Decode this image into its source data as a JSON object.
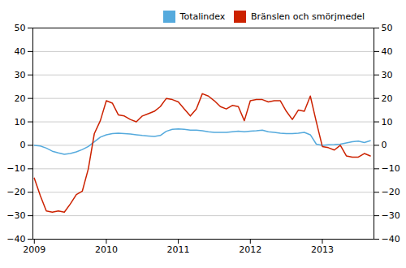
{
  "chart_data": {
    "type": "line",
    "x": [
      2009,
      2009.0833333333,
      2009.1666666667,
      2009.25,
      2009.3333333333,
      2009.4166666667,
      2009.5,
      2009.5833333333,
      2009.6666666667,
      2009.75,
      2009.8333333333,
      2009.9166666667,
      2010,
      2010.0833333333,
      2010.1666666667,
      2010.25,
      2010.3333333333,
      2010.4166666667,
      2010.5,
      2010.5833333333,
      2010.6666666667,
      2010.75,
      2010.8333333333,
      2010.9166666667,
      2011,
      2011.0833333333,
      2011.1666666667,
      2011.25,
      2011.3333333333,
      2011.4166666667,
      2011.5,
      2011.5833333333,
      2011.6666666667,
      2011.75,
      2011.8333333333,
      2011.9166666667,
      2012,
      2012.0833333333,
      2012.1666666667,
      2012.25,
      2012.3333333333,
      2012.4166666667,
      2012.5,
      2012.5833333333,
      2012.6666666667,
      2012.75,
      2012.8333333333,
      2012.9166666667,
      2013,
      2013.0833333333,
      2013.1666666667,
      2013.25,
      2013.3333333333,
      2013.4166666667,
      2013.5,
      2013.5833333333,
      2013.6666666667
    ],
    "series": [
      {
        "name": "Totalindex",
        "color": "#55aadd",
        "values": [
          0.0,
          -0.3,
          -1.2,
          -2.5,
          -3.2,
          -3.8,
          -3.5,
          -2.8,
          -1.8,
          -0.5,
          1.5,
          3.5,
          4.5,
          5.0,
          5.2,
          5.0,
          4.8,
          4.5,
          4.2,
          4.0,
          3.8,
          4.2,
          6.0,
          6.8,
          7.0,
          6.8,
          6.5,
          6.5,
          6.2,
          5.8,
          5.5,
          5.5,
          5.5,
          5.8,
          6.0,
          5.8,
          6.0,
          6.2,
          6.5,
          5.8,
          5.5,
          5.2,
          5.0,
          5.0,
          5.2,
          5.5,
          4.5,
          0.5,
          0.0,
          0.2,
          0.3,
          0.5,
          1.0,
          1.5,
          1.8,
          1.2,
          2.0
        ]
      },
      {
        "name": "Bränslen och smörjmedel",
        "color": "#cc2200",
        "values": [
          -14.0,
          -21.5,
          -28.0,
          -28.5,
          -28.0,
          -28.5,
          -25.0,
          -21.0,
          -19.5,
          -10.0,
          5.0,
          10.5,
          19.0,
          18.0,
          13.0,
          12.5,
          11.0,
          10.0,
          12.5,
          13.5,
          14.5,
          16.5,
          20.0,
          19.5,
          18.5,
          15.5,
          12.5,
          15.5,
          22.0,
          21.0,
          19.0,
          16.5,
          15.5,
          17.0,
          16.5,
          10.5,
          19.0,
          19.5,
          19.5,
          18.5,
          19.0,
          19.0,
          14.5,
          11.0,
          15.0,
          14.5,
          21.0,
          10.0,
          -0.5,
          -1.0,
          -2.0,
          0.0,
          -4.5,
          -5.0,
          -5.0,
          -3.5,
          -4.5
        ]
      }
    ],
    "xlim": [
      2008.98,
      2013.7166666667
    ],
    "xticks": [
      2009,
      2010,
      2011,
      2012,
      2013
    ],
    "ylim": [
      -40,
      50
    ],
    "yticks": [
      -40,
      -30,
      -20,
      -10,
      0,
      10,
      20,
      30,
      40,
      50
    ],
    "y2lim": [
      -40,
      50
    ],
    "y2ticks": [
      -40,
      -30,
      -20,
      -10,
      0,
      10,
      20,
      30,
      40,
      50
    ],
    "grid": true,
    "legend": "upper right"
  }
}
